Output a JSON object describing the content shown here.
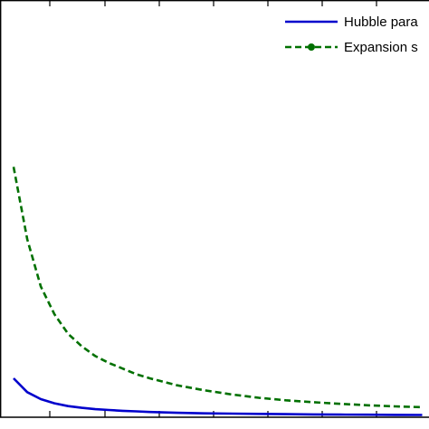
{
  "chart_data": {
    "type": "line",
    "title": "",
    "xlabel": "",
    "ylabel": "",
    "grid": false,
    "legend_position": "top-right",
    "series": [
      {
        "name": "Hubble para",
        "color": "#0000cc",
        "line_style": "solid",
        "marker": "none",
        "x": [
          0,
          1,
          2,
          3,
          4,
          5,
          6,
          7,
          8,
          9,
          10,
          12,
          14,
          16,
          18,
          20,
          22,
          24,
          26,
          28,
          30
        ],
        "y": [
          14,
          9,
          6.5,
          5,
          4,
          3.4,
          2.9,
          2.6,
          2.3,
          2.1,
          1.9,
          1.6,
          1.4,
          1.3,
          1.2,
          1.1,
          1.0,
          0.95,
          0.9,
          0.85,
          0.8
        ]
      },
      {
        "name": "Expansion s",
        "color": "#007000",
        "line_style": "dashed",
        "marker": "circle",
        "x": [
          0,
          1,
          2,
          3,
          4,
          5,
          6,
          7,
          8,
          9,
          10,
          12,
          14,
          16,
          18,
          20,
          22,
          24,
          26,
          28,
          30
        ],
        "y": [
          90,
          64,
          47,
          37,
          30,
          25.5,
          22,
          19.5,
          17.5,
          15.5,
          14,
          11.5,
          9.7,
          8.2,
          7.0,
          6.1,
          5.4,
          4.8,
          4.3,
          3.9,
          3.6
        ]
      }
    ]
  }
}
